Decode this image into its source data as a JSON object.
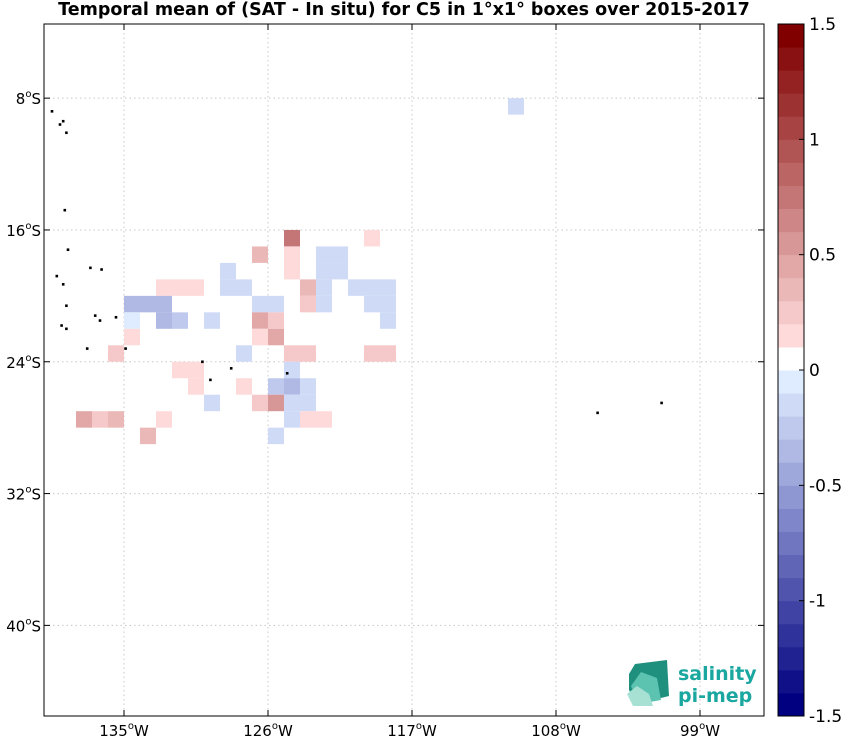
{
  "chart_data": {
    "type": "heatmap",
    "title": "Temporal mean of (SAT - In situ) for C5 in 1°x1° boxes over 2015-2017",
    "xlim": [
      -140,
      -95
    ],
    "ylim": [
      -45.5,
      -3.5
    ],
    "x_ticks": [
      {
        "value": -135,
        "label": "135"
      },
      {
        "value": -126,
        "label": "126"
      },
      {
        "value": -117,
        "label": "117"
      },
      {
        "value": -108,
        "label": "108"
      },
      {
        "value": -99,
        "label": "99"
      }
    ],
    "x_tick_suffix": "W",
    "y_ticks": [
      {
        "value": -8,
        "label": "8"
      },
      {
        "value": -16,
        "label": "16"
      },
      {
        "value": -24,
        "label": "24"
      },
      {
        "value": -32,
        "label": "32"
      },
      {
        "value": -40,
        "label": "40"
      }
    ],
    "y_tick_suffix": "S",
    "grid": true,
    "colorbar": {
      "min": -1.5,
      "max": 1.5,
      "levels": 30,
      "ticks": [
        {
          "value": 1.5,
          "label": "1.5"
        },
        {
          "value": 1,
          "label": "1"
        },
        {
          "value": 0.5,
          "label": "0.5"
        },
        {
          "value": 0,
          "label": "0"
        },
        {
          "value": -0.5,
          "label": "-0.5"
        },
        {
          "value": -1,
          "label": "-1"
        },
        {
          "value": -1.5,
          "label": "-1.5"
        }
      ]
    },
    "cells": [
      {
        "lon": -110.5,
        "lat": -8.5,
        "value": -0.15
      },
      {
        "lon": -124.5,
        "lat": -16.5,
        "value": 0.75
      },
      {
        "lon": -119.5,
        "lat": -16.5,
        "value": 0.15
      },
      {
        "lon": -126.5,
        "lat": -17.5,
        "value": 0.35
      },
      {
        "lon": -124.5,
        "lat": -17.5,
        "value": 0.15
      },
      {
        "lon": -122.5,
        "lat": -17.5,
        "value": -0.15
      },
      {
        "lon": -121.5,
        "lat": -17.5,
        "value": -0.15
      },
      {
        "lon": -128.5,
        "lat": -18.5,
        "value": -0.15
      },
      {
        "lon": -124.5,
        "lat": -18.5,
        "value": 0.15
      },
      {
        "lon": -122.5,
        "lat": -18.5,
        "value": -0.15
      },
      {
        "lon": -121.5,
        "lat": -18.5,
        "value": -0.15
      },
      {
        "lon": -132.5,
        "lat": -19.5,
        "value": 0.15
      },
      {
        "lon": -131.5,
        "lat": -19.5,
        "value": 0.15
      },
      {
        "lon": -130.5,
        "lat": -19.5,
        "value": 0.15
      },
      {
        "lon": -128.5,
        "lat": -19.5,
        "value": -0.15
      },
      {
        "lon": -127.5,
        "lat": -19.5,
        "value": -0.15
      },
      {
        "lon": -123.5,
        "lat": -19.5,
        "value": 0.35
      },
      {
        "lon": -122.5,
        "lat": -19.5,
        "value": -0.15
      },
      {
        "lon": -120.5,
        "lat": -19.5,
        "value": -0.15
      },
      {
        "lon": -119.5,
        "lat": -19.5,
        "value": -0.15
      },
      {
        "lon": -118.5,
        "lat": -19.5,
        "value": -0.15
      },
      {
        "lon": -134.5,
        "lat": -20.5,
        "value": -0.35
      },
      {
        "lon": -133.5,
        "lat": -20.5,
        "value": -0.35
      },
      {
        "lon": -132.5,
        "lat": -20.5,
        "value": -0.35
      },
      {
        "lon": -126.5,
        "lat": -20.5,
        "value": -0.15
      },
      {
        "lon": -125.5,
        "lat": -20.5,
        "value": -0.15
      },
      {
        "lon": -123.5,
        "lat": -20.5,
        "value": 0.25
      },
      {
        "lon": -122.5,
        "lat": -20.5,
        "value": -0.15
      },
      {
        "lon": -119.5,
        "lat": -20.5,
        "value": -0.15
      },
      {
        "lon": -118.5,
        "lat": -20.5,
        "value": -0.15
      },
      {
        "lon": -134.5,
        "lat": -21.5,
        "value": -0.05
      },
      {
        "lon": -132.5,
        "lat": -21.5,
        "value": -0.35
      },
      {
        "lon": -131.5,
        "lat": -21.5,
        "value": -0.25
      },
      {
        "lon": -129.5,
        "lat": -21.5,
        "value": -0.15
      },
      {
        "lon": -126.5,
        "lat": -21.5,
        "value": 0.45
      },
      {
        "lon": -125.5,
        "lat": -21.5,
        "value": 0.25
      },
      {
        "lon": -118.5,
        "lat": -21.5,
        "value": -0.15
      },
      {
        "lon": -134.5,
        "lat": -22.5,
        "value": 0.15
      },
      {
        "lon": -126.5,
        "lat": -22.5,
        "value": 0.15
      },
      {
        "lon": -125.5,
        "lat": -22.5,
        "value": 0.45
      },
      {
        "lon": -135.5,
        "lat": -23.5,
        "value": 0.25
      },
      {
        "lon": -127.5,
        "lat": -23.5,
        "value": -0.15
      },
      {
        "lon": -124.5,
        "lat": -23.5,
        "value": 0.25
      },
      {
        "lon": -123.5,
        "lat": -23.5,
        "value": 0.25
      },
      {
        "lon": -119.5,
        "lat": -23.5,
        "value": 0.25
      },
      {
        "lon": -118.5,
        "lat": -23.5,
        "value": 0.25
      },
      {
        "lon": -131.5,
        "lat": -24.5,
        "value": 0.15
      },
      {
        "lon": -130.5,
        "lat": -24.5,
        "value": 0.15
      },
      {
        "lon": -124.5,
        "lat": -24.5,
        "value": -0.15
      },
      {
        "lon": -130.5,
        "lat": -25.5,
        "value": 0.15
      },
      {
        "lon": -127.5,
        "lat": -25.5,
        "value": 0.15
      },
      {
        "lon": -125.5,
        "lat": -25.5,
        "value": -0.25
      },
      {
        "lon": -124.5,
        "lat": -25.5,
        "value": -0.35
      },
      {
        "lon": -123.5,
        "lat": -25.5,
        "value": -0.15
      },
      {
        "lon": -129.5,
        "lat": -26.5,
        "value": -0.15
      },
      {
        "lon": -126.5,
        "lat": -26.5,
        "value": 0.25
      },
      {
        "lon": -125.5,
        "lat": -26.5,
        "value": 0.55
      },
      {
        "lon": -124.5,
        "lat": -26.5,
        "value": -0.15
      },
      {
        "lon": -123.5,
        "lat": -26.5,
        "value": -0.15
      },
      {
        "lon": -137.5,
        "lat": -27.5,
        "value": 0.45
      },
      {
        "lon": -136.5,
        "lat": -27.5,
        "value": 0.25
      },
      {
        "lon": -135.5,
        "lat": -27.5,
        "value": 0.35
      },
      {
        "lon": -132.5,
        "lat": -27.5,
        "value": 0.15
      },
      {
        "lon": -124.5,
        "lat": -27.5,
        "value": -0.15
      },
      {
        "lon": -123.5,
        "lat": -27.5,
        "value": 0.15
      },
      {
        "lon": -122.5,
        "lat": -27.5,
        "value": 0.15
      },
      {
        "lon": -133.5,
        "lat": -28.5,
        "value": 0.35
      },
      {
        "lon": -125.5,
        "lat": -28.5,
        "value": -0.15
      }
    ],
    "land": [
      {
        "lon": -139.5,
        "lat": -8.8
      },
      {
        "lon": -139.0,
        "lat": -9.6
      },
      {
        "lon": -138.8,
        "lat": -9.4
      },
      {
        "lon": -138.6,
        "lat": -10.1
      },
      {
        "lon": -138.7,
        "lat": -14.8
      },
      {
        "lon": -138.5,
        "lat": -17.2
      },
      {
        "lon": -137.1,
        "lat": -18.3
      },
      {
        "lon": -136.4,
        "lat": -18.4
      },
      {
        "lon": -139.2,
        "lat": -18.8
      },
      {
        "lon": -138.8,
        "lat": -19.3
      },
      {
        "lon": -136.8,
        "lat": -21.2
      },
      {
        "lon": -136.5,
        "lat": -21.5
      },
      {
        "lon": -135.5,
        "lat": -21.3
      },
      {
        "lon": -138.6,
        "lat": -20.6
      },
      {
        "lon": -138.9,
        "lat": -21.8
      },
      {
        "lon": -138.6,
        "lat": -22.0
      },
      {
        "lon": -134.9,
        "lat": -23.2
      },
      {
        "lon": -137.3,
        "lat": -23.2
      },
      {
        "lon": -130.1,
        "lat": -24.0
      },
      {
        "lon": -128.3,
        "lat": -24.4
      },
      {
        "lon": -129.6,
        "lat": -25.1
      },
      {
        "lon": -124.8,
        "lat": -24.7
      },
      {
        "lon": -105.4,
        "lat": -27.1
      },
      {
        "lon": -101.4,
        "lat": -26.5
      }
    ]
  },
  "logo": {
    "line1": "salinity",
    "line2": "pi-mep"
  }
}
